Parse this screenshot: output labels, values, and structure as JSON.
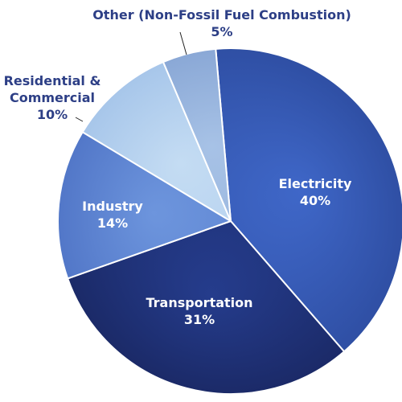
{
  "chart_data": {
    "type": "pie",
    "slices": [
      {
        "name": "Electricity",
        "value": 40,
        "value_label": "40%",
        "color": "#3f67c8",
        "color_edge": "#2f4fa4"
      },
      {
        "name": "Transportation",
        "value": 31,
        "value_label": "31%",
        "color": "#253c8c",
        "color_edge": "#1b2a68"
      },
      {
        "name": "Industry",
        "value": 14,
        "value_label": "14%",
        "color": "#6d95dd",
        "color_edge": "#5277c8"
      },
      {
        "name": "Residential & Commercial",
        "value": 10,
        "value_label": "10%",
        "color": "#c4dcf3",
        "color_edge": "#a7c6ea"
      },
      {
        "name": "Other (Non-Fossil Fuel Combustion)",
        "value": 5,
        "value_label": "5%",
        "color": "#a7c2e6",
        "color_edge": "#8aa8d6"
      }
    ],
    "label_color": "#2d3f86",
    "label_lines": [
      {
        "name": "Residential & Commercial",
        "lines": [
          "Residential &",
          "Commercial",
          "10%"
        ]
      },
      {
        "name": "Other (Non-Fossil Fuel Combustion)",
        "lines": [
          "Other (Non-Fossil Fuel Combustion)",
          "5%"
        ]
      }
    ]
  }
}
